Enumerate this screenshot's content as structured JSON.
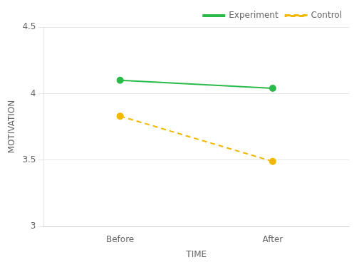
{
  "chart_data": {
    "type": "line",
    "categories": [
      "Before",
      "After"
    ],
    "series": [
      {
        "name": "Experiment",
        "color": "#2aba4a",
        "values": [
          4.1,
          4.04
        ],
        "line_style": "solid",
        "marker": "circle"
      },
      {
        "name": "Control",
        "color": "#f0b800",
        "values": [
          3.83,
          3.49
        ],
        "line_style": "dashed",
        "marker": "circle"
      }
    ],
    "xlabel": "TIME",
    "ylabel": "MOTIVATION",
    "ylim": [
      3.0,
      4.5
    ],
    "yticks": [
      3,
      3.5,
      4,
      4.5
    ],
    "grid": "y",
    "legend": "upper right"
  }
}
